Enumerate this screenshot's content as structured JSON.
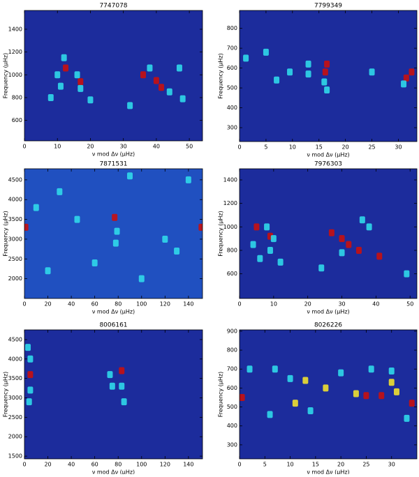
{
  "chart_data": [
    {
      "type": "heatmap",
      "title": "7747078",
      "xlabel": "ν mod Δν (μHz)",
      "ylabel": "Frequency (μHz)",
      "background": "#1c2c9c",
      "xlim": [
        0,
        54
      ],
      "xticks": [
        0,
        10,
        20,
        30,
        40,
        50
      ],
      "ylim": [
        420,
        1565
      ],
      "yticks": [
        600,
        800,
        1000,
        1200,
        1400
      ],
      "series": [
        {
          "color": "#c81010",
          "x": [
            12.5,
            17,
            36,
            40,
            41.5
          ],
          "values": [
            1060,
            940,
            1000,
            950,
            890
          ]
        },
        {
          "color": "#30d8ea",
          "x": [
            10,
            16,
            17,
            11,
            8,
            38,
            44,
            48,
            32,
            47,
            12,
            20
          ],
          "values": [
            1000,
            1000,
            880,
            900,
            800,
            1060,
            850,
            790,
            730,
            1060,
            1150,
            780
          ]
        }
      ]
    },
    {
      "type": "heatmap",
      "title": "7799349",
      "xlabel": "ν mod Δν (μHz)",
      "ylabel": "Frequency (μHz)",
      "background": "#1c2c9c",
      "xlim": [
        0,
        33.5
      ],
      "xticks": [
        0,
        5,
        10,
        15,
        20,
        25,
        30
      ],
      "ylim": [
        230,
        890
      ],
      "yticks": [
        300,
        400,
        500,
        600,
        700,
        800
      ],
      "series": [
        {
          "color": "#c81010",
          "x": [
            16.2,
            16.5,
            31.5,
            32.5
          ],
          "values": [
            580,
            620,
            550,
            580
          ]
        },
        {
          "color": "#30d8ea",
          "x": [
            1.2,
            9.5,
            13,
            13,
            16,
            16.5,
            31,
            25,
            5,
            7
          ],
          "values": [
            650,
            580,
            620,
            570,
            530,
            490,
            520,
            580,
            680,
            540
          ]
        }
      ]
    },
    {
      "type": "heatmap",
      "title": "7871531",
      "xlabel": "ν mod Δν (μHz)",
      "ylabel": "Frequency (μHz)",
      "background": "#2050c0",
      "xlim": [
        0,
        152
      ],
      "xticks": [
        0,
        20,
        40,
        60,
        80,
        100,
        120,
        140
      ],
      "ylim": [
        1500,
        4780
      ],
      "yticks": [
        2000,
        2500,
        3000,
        3500,
        4000,
        4500
      ],
      "series": [
        {
          "color": "#c81010",
          "x": [
            77,
            151,
            1
          ],
          "values": [
            3550,
            3300,
            3300
          ]
        },
        {
          "color": "#30d8ea",
          "x": [
            79,
            78,
            10,
            30,
            120,
            60,
            100,
            140,
            45,
            90,
            20,
            130
          ],
          "values": [
            3200,
            2900,
            3800,
            4200,
            3000,
            2400,
            2000,
            4500,
            3500,
            4600,
            2200,
            2700
          ]
        }
      ]
    },
    {
      "type": "heatmap",
      "title": "7976303",
      "xlabel": "ν mod Δν (μHz)",
      "ylabel": "Frequency (μHz)",
      "background": "#1c2c9c",
      "xlim": [
        0,
        52
      ],
      "xticks": [
        0,
        10,
        20,
        30,
        40,
        50
      ],
      "ylim": [
        390,
        1495
      ],
      "yticks": [
        600,
        800,
        1000,
        1200,
        1400
      ],
      "series": [
        {
          "color": "#c81010",
          "x": [
            5,
            9,
            27,
            30,
            32,
            35,
            41
          ],
          "values": [
            1000,
            920,
            950,
            900,
            850,
            800,
            750
          ]
        },
        {
          "color": "#30d8ea",
          "x": [
            4,
            8,
            9,
            6,
            12,
            36,
            38,
            24,
            30,
            49,
            10
          ],
          "values": [
            850,
            1000,
            800,
            730,
            700,
            1060,
            1000,
            650,
            780,
            600,
            900
          ]
        }
      ]
    },
    {
      "type": "heatmap",
      "title": "8006161",
      "xlabel": "ν mod Δν (μHz)",
      "ylabel": "Frequency (μHz)",
      "background": "#1c2c9c",
      "xlim": [
        0,
        152
      ],
      "xticks": [
        0,
        20,
        40,
        60,
        80,
        100,
        120,
        140
      ],
      "ylim": [
        1430,
        4750
      ],
      "yticks": [
        1500,
        2000,
        2500,
        3000,
        3500,
        4000,
        4500
      ],
      "series": [
        {
          "color": "#c81010",
          "x": [
            5,
            83
          ],
          "values": [
            3600,
            3700
          ]
        },
        {
          "color": "#30d8ea",
          "x": [
            5,
            5,
            4,
            73,
            75,
            83,
            85,
            3
          ],
          "values": [
            3200,
            4000,
            2900,
            3600,
            3300,
            3300,
            2900,
            4300
          ]
        }
      ]
    },
    {
      "type": "heatmap",
      "title": "8026226",
      "xlabel": "ν mod Δν (μHz)",
      "ylabel": "Frequency (μHz)",
      "background": "#1c2c9c",
      "xlim": [
        0,
        35
      ],
      "xticks": [
        0,
        5,
        10,
        15,
        20,
        25,
        30
      ],
      "ylim": [
        226,
        907
      ],
      "yticks": [
        300,
        400,
        500,
        600,
        700,
        800,
        900
      ],
      "series": [
        {
          "color": "#c81010",
          "x": [
            0.5,
            34,
            25,
            28
          ],
          "values": [
            550,
            520,
            560,
            560
          ]
        },
        {
          "color": "#f0e030",
          "x": [
            11,
            13,
            17,
            23,
            30,
            31
          ],
          "values": [
            520,
            640,
            600,
            570,
            630,
            580
          ]
        },
        {
          "color": "#30d8ea",
          "x": [
            2,
            7,
            10,
            20,
            26,
            6,
            14,
            33,
            30
          ],
          "values": [
            700,
            700,
            650,
            680,
            700,
            460,
            480,
            440,
            690
          ]
        }
      ]
    }
  ]
}
